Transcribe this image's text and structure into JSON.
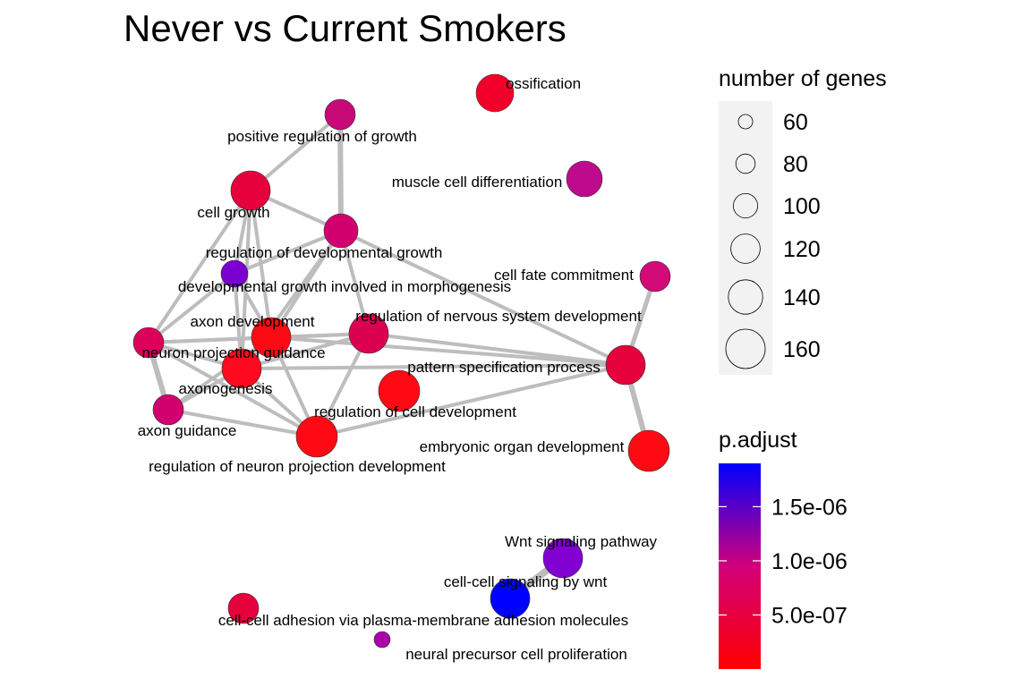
{
  "title": "Never vs Current Smokers",
  "legend": {
    "size_title": "number of genes",
    "size_entries": [
      {
        "label": "60",
        "value": 60
      },
      {
        "label": "80",
        "value": 80
      },
      {
        "label": "100",
        "value": 100
      },
      {
        "label": "120",
        "value": 120
      },
      {
        "label": "140",
        "value": 140
      },
      {
        "label": "160",
        "value": 160
      }
    ],
    "color_title": "p.adjust",
    "color_ticks": [
      {
        "label": "1.5e-06",
        "value": 1.5e-06
      },
      {
        "label": "1.0e-06",
        "value": 1e-06
      },
      {
        "label": "5.0e-07",
        "value": 5e-07
      }
    ],
    "color_range": [
      0,
      1.9e-06
    ],
    "color_low": "#ff0000",
    "color_high": "#0000ff"
  },
  "nodes": [
    {
      "id": "ossification",
      "label": "ossification",
      "color": "#f2002a"
    },
    {
      "id": "pos_reg_growth",
      "label": "positive regulation of growth",
      "color": "#c80a78"
    },
    {
      "id": "muscle_cell_diff",
      "label": "muscle cell differentiation",
      "color": "#be0a8c"
    },
    {
      "id": "cell_growth",
      "label": "cell growth",
      "color": "#e6003c"
    },
    {
      "id": "reg_dev_growth",
      "label": "regulation of developmental growth",
      "color": "#d2006e"
    },
    {
      "id": "dev_growth_morph",
      "label": "developmental growth involved in morphogenesis",
      "color": "#7a00d2"
    },
    {
      "id": "cell_fate",
      "label": "cell fate commitment",
      "color": "#d20a78"
    },
    {
      "id": "axon_dev",
      "label": "axon development",
      "color": "#ff0a14"
    },
    {
      "id": "reg_nervous_dev",
      "label": "regulation of nervous system development",
      "color": "#dc0050"
    },
    {
      "id": "neuron_proj_guid",
      "label": "neuron projection guidance",
      "color": "#dc005a"
    },
    {
      "id": "pattern_spec",
      "label": "pattern specification process",
      "color": "#e6003c"
    },
    {
      "id": "axonogenesis",
      "label": "axonogenesis",
      "color": "#ff0a1e"
    },
    {
      "id": "axon_guidance",
      "label": "axon guidance",
      "color": "#d2006e"
    },
    {
      "id": "reg_cell_dev",
      "label": "regulation of cell development",
      "color": "#ff0a14"
    },
    {
      "id": "embryonic_organ",
      "label": "embryonic organ development",
      "color": "#ff0a14"
    },
    {
      "id": "reg_neuron_proj",
      "label": "regulation of neuron projection development",
      "color": "#ff0a14"
    },
    {
      "id": "wnt_pathway",
      "label": "Wnt signaling pathway",
      "color": "#8200d2"
    },
    {
      "id": "wnt_cellcell",
      "label": "cell-cell signaling by wnt",
      "color": "#0000ff"
    },
    {
      "id": "cc_adhesion",
      "label": "cell-cell adhesion via plasma-membrane adhesion molecules",
      "color": "#e6003c"
    },
    {
      "id": "neural_precursor",
      "label": "neural precursor cell proliferation",
      "color": "#aa00aa"
    }
  ],
  "edges": [
    [
      "pos_reg_growth",
      "cell_growth"
    ],
    [
      "pos_reg_growth",
      "reg_dev_growth"
    ],
    [
      "cell_growth",
      "reg_dev_growth"
    ],
    [
      "cell_growth",
      "dev_growth_morph"
    ],
    [
      "cell_growth",
      "axon_dev"
    ],
    [
      "cell_growth",
      "axonogenesis"
    ],
    [
      "cell_growth",
      "neuron_proj_guid"
    ],
    [
      "reg_dev_growth",
      "dev_growth_morph"
    ],
    [
      "reg_dev_growth",
      "axon_dev"
    ],
    [
      "reg_dev_growth",
      "axonogenesis"
    ],
    [
      "reg_dev_growth",
      "reg_nervous_dev"
    ],
    [
      "reg_dev_growth",
      "pattern_spec"
    ],
    [
      "dev_growth_morph",
      "neuron_proj_guid"
    ],
    [
      "dev_growth_morph",
      "axon_dev"
    ],
    [
      "dev_growth_morph",
      "axonogenesis"
    ],
    [
      "neuron_proj_guid",
      "axon_dev"
    ],
    [
      "neuron_proj_guid",
      "axonogenesis"
    ],
    [
      "neuron_proj_guid",
      "axon_guidance"
    ],
    [
      "neuron_proj_guid",
      "reg_neuron_proj"
    ],
    [
      "neuron_proj_guid",
      "reg_nervous_dev"
    ],
    [
      "axon_dev",
      "axonogenesis"
    ],
    [
      "axon_dev",
      "axon_guidance"
    ],
    [
      "axon_dev",
      "reg_nervous_dev"
    ],
    [
      "axon_dev",
      "pattern_spec"
    ],
    [
      "axon_dev",
      "reg_neuron_proj"
    ],
    [
      "axonogenesis",
      "axon_guidance"
    ],
    [
      "axonogenesis",
      "reg_nervous_dev"
    ],
    [
      "axonogenesis",
      "pattern_spec"
    ],
    [
      "axonogenesis",
      "reg_neuron_proj"
    ],
    [
      "reg_nervous_dev",
      "pattern_spec"
    ],
    [
      "reg_nervous_dev",
      "reg_neuron_proj"
    ],
    [
      "pattern_spec",
      "reg_neuron_proj"
    ],
    [
      "axon_guidance",
      "reg_neuron_proj"
    ],
    [
      "cell_fate",
      "reg_cell_dev"
    ],
    [
      "reg_cell_dev",
      "embryonic_organ"
    ],
    [
      "wnt_pathway",
      "wnt_cellcell"
    ]
  ]
}
